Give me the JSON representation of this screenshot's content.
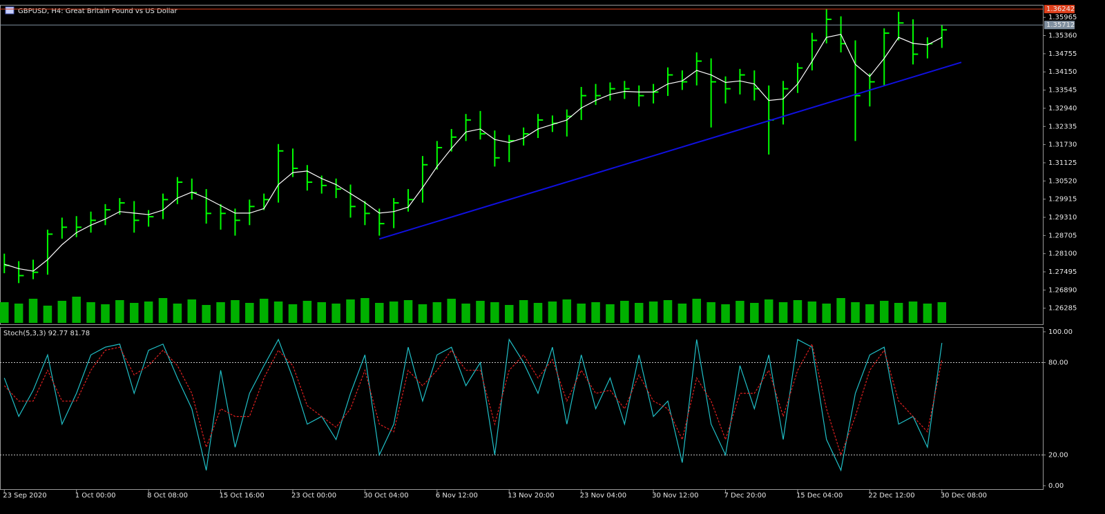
{
  "chart_data": [
    {
      "type": "ohlc",
      "title": "GBPUSD, H4:  Great Britain Pound vs US Dollar",
      "color": "#00ff00",
      "ma_color": "#ffffff",
      "trend_color": "#1010e0",
      "volume_color": "#00b000",
      "xlim": [
        -0.3,
        72
      ],
      "ylim": [
        1.2575,
        1.3636
      ],
      "yticks": [
        1.26285,
        {
          "value": 1.2689,
          "label": "1.26890"
        },
        1.27495,
        {
          "value": 1.281,
          "label": "1.28100"
        },
        1.28705,
        {
          "value": 1.2931,
          "label": "1.29310"
        },
        1.29915,
        {
          "value": 1.3052,
          "label": "1.30520"
        },
        1.31125,
        {
          "value": 1.3173,
          "label": "1.31730"
        },
        1.32335,
        {
          "value": 1.3294,
          "label": "1.32940"
        },
        1.33545,
        {
          "value": 1.3415,
          "label": "1.34150"
        },
        1.34755,
        {
          "value": 1.3536,
          "label": "1.35360"
        },
        1.35965
      ],
      "high": [
        1.281,
        1.2785,
        1.279,
        1.289,
        1.293,
        1.2935,
        1.295,
        1.2975,
        1.2995,
        1.2985,
        1.2955,
        1.301,
        1.3065,
        1.306,
        1.3025,
        1.2975,
        1.296,
        1.299,
        1.301,
        1.3175,
        1.316,
        1.3105,
        1.307,
        1.306,
        1.304,
        1.2985,
        1.296,
        1.2995,
        1.3025,
        1.3135,
        1.3185,
        1.3225,
        1.3275,
        1.3285,
        1.322,
        1.3205,
        1.323,
        1.3275,
        1.327,
        1.329,
        1.3365,
        1.3375,
        1.338,
        1.3385,
        1.337,
        1.3375,
        1.343,
        1.342,
        1.348,
        1.346,
        1.34,
        1.3425,
        1.342,
        1.337,
        1.3385,
        1.3445,
        1.3545,
        1.3625,
        1.36,
        1.352,
        1.341,
        1.356,
        1.3615,
        1.359,
        1.353,
        1.3572
      ],
      "low": [
        1.2745,
        1.2712,
        1.2725,
        1.274,
        1.286,
        1.2865,
        1.288,
        1.2905,
        1.294,
        1.288,
        1.29,
        1.2925,
        1.2975,
        1.299,
        1.291,
        1.289,
        1.287,
        1.2905,
        1.2955,
        1.298,
        1.3065,
        1.302,
        1.301,
        1.2995,
        1.293,
        1.2905,
        1.287,
        1.2895,
        1.295,
        1.298,
        1.309,
        1.315,
        1.3185,
        1.319,
        1.31,
        1.3115,
        1.317,
        1.3195,
        1.3215,
        1.32,
        1.3255,
        1.3305,
        1.332,
        1.3325,
        1.33,
        1.331,
        1.3335,
        1.3355,
        1.337,
        1.323,
        1.331,
        1.334,
        1.332,
        1.314,
        1.324,
        1.3345,
        1.342,
        1.351,
        1.348,
        1.3185,
        1.33,
        1.337,
        1.352,
        1.344,
        1.346,
        1.3495
      ],
      "close": [
        1.2771,
        1.2737,
        1.2748,
        1.2875,
        1.2898,
        1.2898,
        1.2921,
        1.2956,
        1.2979,
        1.2921,
        1.2933,
        1.299,
        1.3048,
        1.3013,
        1.2944,
        1.2944,
        1.2921,
        1.2967,
        1.299,
        1.3152,
        1.3094,
        1.3048,
        1.3037,
        1.3025,
        1.2967,
        1.2944,
        1.291,
        1.2979,
        1.299,
        1.3106,
        1.3163,
        1.3198,
        1.3255,
        1.3209,
        1.3129,
        1.3186,
        1.3209,
        1.3255,
        1.3244,
        1.3267,
        1.3336,
        1.3336,
        1.3359,
        1.3359,
        1.3336,
        1.3348,
        1.3405,
        1.3382,
        1.3451,
        1.3382,
        1.3359,
        1.3405,
        1.3359,
        1.3255,
        1.3359,
        1.3428,
        1.352,
        1.359,
        1.3509,
        1.3336,
        1.3382,
        1.3544,
        1.3578,
        1.3474,
        1.3509,
        1.3555
      ],
      "ma": [
        1.2775,
        1.276,
        1.2752,
        1.279,
        1.284,
        1.288,
        1.2905,
        1.2925,
        1.295,
        1.2945,
        1.294,
        1.2955,
        1.2995,
        1.3015,
        1.2995,
        1.297,
        1.2945,
        1.2945,
        1.296,
        1.304,
        1.308,
        1.3085,
        1.306,
        1.304,
        1.301,
        1.298,
        1.2945,
        1.295,
        1.2965,
        1.303,
        1.31,
        1.316,
        1.3215,
        1.3225,
        1.319,
        1.318,
        1.3195,
        1.3225,
        1.324,
        1.3255,
        1.3295,
        1.332,
        1.334,
        1.335,
        1.3348,
        1.3348,
        1.3375,
        1.3385,
        1.342,
        1.3405,
        1.338,
        1.3385,
        1.3375,
        1.332,
        1.3325,
        1.3375,
        1.345,
        1.353,
        1.354,
        1.344,
        1.34,
        1.346,
        1.353,
        1.351,
        1.3505,
        1.353
      ],
      "volume": [
        30,
        28,
        35,
        25,
        32,
        38,
        30,
        27,
        33,
        29,
        31,
        36,
        28,
        34,
        26,
        30,
        33,
        29,
        35,
        31,
        27,
        32,
        30,
        28,
        34,
        36,
        29,
        31,
        33,
        27,
        30,
        35,
        28,
        32,
        30,
        26,
        33,
        29,
        31,
        34,
        28,
        30,
        27,
        32,
        29,
        31,
        33,
        28,
        35,
        30,
        27,
        32,
        29,
        34,
        30,
        33,
        31,
        28,
        36,
        30,
        27,
        32,
        29,
        31,
        28,
        30
      ],
      "trendline": {
        "x": [
          26,
          66.35
        ],
        "y": [
          1.2859,
          1.3447
        ]
      },
      "price_lines": [
        {
          "value": 1.36242,
          "color": "#e0401c"
        },
        {
          "value": 1.35712,
          "color": "#8090a0"
        }
      ]
    },
    {
      "type": "line",
      "title": "Stoch(5,3,3) 92.77 81.78",
      "xlim": [
        -0.3,
        72
      ],
      "ylim": [
        -1.8,
        102.2
      ],
      "yticks": [
        {
          "value": 100,
          "label": "100.00"
        },
        {
          "value": 80,
          "label": "80.00"
        },
        {
          "value": 20,
          "label": "20.00"
        },
        {
          "value": 0,
          "label": "0.00"
        }
      ],
      "levels": [
        20,
        80
      ],
      "xticks": [
        {
          "value": 0,
          "label": "23 Sep 2020"
        },
        {
          "value": 5,
          "label": "1 Oct 00:00"
        },
        {
          "value": 10,
          "label": "8 Oct 08:00"
        },
        {
          "value": 15,
          "label": "15 Oct 16:00"
        },
        {
          "value": 20,
          "label": "23 Oct 00:00"
        },
        {
          "value": 25,
          "label": "30 Oct 04:00"
        },
        {
          "value": 30,
          "label": "6 Nov 12:00"
        },
        {
          "value": 35,
          "label": "13 Nov 20:00"
        },
        {
          "value": 40,
          "label": "23 Nov 04:00"
        },
        {
          "value": 45,
          "label": "30 Nov 12:00"
        },
        {
          "value": 50,
          "label": "7 Dec 20:00"
        },
        {
          "value": 55,
          "label": "15 Dec 04:00"
        },
        {
          "value": 60,
          "label": "22 Dec 12:00"
        },
        {
          "value": 65,
          "label": "30 Dec 08:00"
        }
      ],
      "series": [
        {
          "color": "#20c0c8",
          "values": [
            70,
            45,
            62,
            85,
            40,
            60,
            85,
            90,
            92,
            60,
            88,
            92,
            70,
            50,
            10,
            75,
            25,
            60,
            78,
            95,
            70,
            40,
            45,
            30,
            60,
            85,
            20,
            40,
            90,
            55,
            85,
            90,
            65,
            80,
            20,
            95,
            80,
            60,
            90,
            40,
            85,
            50,
            70,
            40,
            85,
            45,
            55,
            15,
            95,
            40,
            20,
            78,
            50,
            85,
            30,
            95,
            90,
            30,
            10,
            60,
            85,
            90,
            40,
            45,
            25,
            92.77
          ]
        },
        {
          "color": "#e02020",
          "dashed": true,
          "values": [
            65,
            55,
            55,
            75,
            55,
            55,
            75,
            88,
            90,
            72,
            78,
            88,
            78,
            60,
            25,
            50,
            45,
            45,
            70,
            88,
            78,
            52,
            45,
            38,
            50,
            75,
            40,
            35,
            75,
            65,
            75,
            88,
            75,
            75,
            40,
            75,
            85,
            70,
            82,
            55,
            75,
            60,
            62,
            50,
            72,
            55,
            50,
            30,
            70,
            55,
            30,
            60,
            60,
            75,
            45,
            75,
            92,
            50,
            20,
            45,
            75,
            88,
            55,
            45,
            35,
            81.78
          ]
        }
      ]
    }
  ]
}
